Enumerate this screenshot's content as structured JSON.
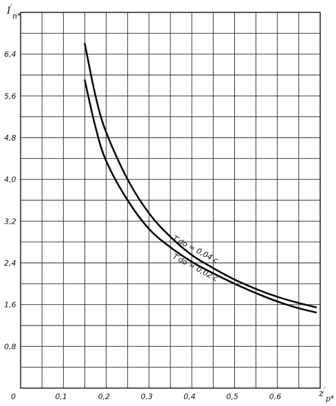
{
  "chart_data": {
    "type": "line",
    "title": "",
    "ylabel": {
      "main": "I",
      "prime": "′",
      "sub": "п*"
    },
    "xlabel": {
      "main": "z",
      "prime": "′",
      "sub": "р*"
    },
    "xlim": [
      0,
      0.7
    ],
    "ylim": [
      0,
      7.2
    ],
    "x_ticks": [
      {
        "value": 0,
        "label": "0"
      },
      {
        "value": 0.1,
        "label": "0,1"
      },
      {
        "value": 0.2,
        "label": "0,2"
      },
      {
        "value": 0.3,
        "label": "0,3"
      },
      {
        "value": 0.4,
        "label": "0,4"
      },
      {
        "value": 0.5,
        "label": "0,5"
      },
      {
        "value": 0.6,
        "label": "0,6"
      }
    ],
    "y_ticks": [
      {
        "value": 0.8,
        "label": "0,8"
      },
      {
        "value": 1.6,
        "label": "1,6"
      },
      {
        "value": 2.4,
        "label": "2,4"
      },
      {
        "value": 3.2,
        "label": "3,2"
      },
      {
        "value": 4.0,
        "label": "4,0"
      },
      {
        "value": 4.8,
        "label": "4,8"
      },
      {
        "value": 5.6,
        "label": "5,6"
      },
      {
        "value": 6.4,
        "label": "6,4"
      }
    ],
    "x_grid_step": 0.05,
    "y_grid_step": 0.4,
    "grid": true,
    "series": [
      {
        "name": "T′dо = 0,04 с",
        "x": [
          0.15,
          0.175,
          0.2,
          0.25,
          0.3,
          0.35,
          0.4,
          0.45,
          0.5,
          0.55,
          0.6,
          0.65,
          0.69
        ],
        "y": [
          6.6,
          5.6,
          4.9,
          4.0,
          3.35,
          2.9,
          2.55,
          2.3,
          2.08,
          1.9,
          1.75,
          1.63,
          1.55
        ]
      },
      {
        "name": "T′dо = 0,02 с",
        "x": [
          0.15,
          0.175,
          0.2,
          0.25,
          0.3,
          0.35,
          0.4,
          0.45,
          0.5,
          0.55,
          0.6,
          0.65,
          0.69
        ],
        "y": [
          5.9,
          5.0,
          4.35,
          3.6,
          3.05,
          2.7,
          2.42,
          2.2,
          2.0,
          1.82,
          1.66,
          1.53,
          1.45
        ]
      }
    ],
    "annotations": [
      {
        "text": "T′dо = 0,04 с",
        "series": 0
      },
      {
        "text": "T′dо = 0,02 с",
        "series": 1
      }
    ]
  }
}
